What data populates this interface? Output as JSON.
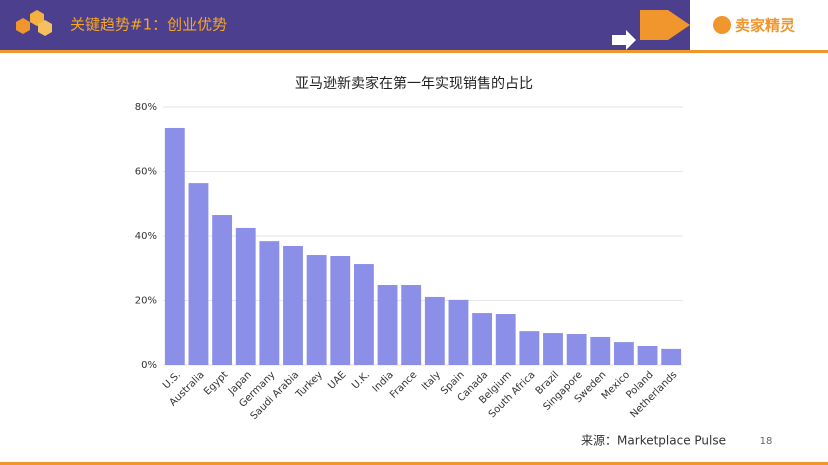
{
  "header": {
    "title": "关键趋势#1：创业优势",
    "brand": "卖家精灵"
  },
  "footer": {
    "source": "来源：Marketplace Pulse",
    "page": "18"
  },
  "chart_data": {
    "type": "bar",
    "title": "亚马逊新卖家在第一年实现销售的占比",
    "categories": [
      "U.S.",
      "Australia",
      "Egypt",
      "Japan",
      "Germany",
      "Saudi Arabia",
      "Turkey",
      "UAE",
      "U.K.",
      "India",
      "France",
      "Italy",
      "Spain",
      "Canada",
      "Belgium",
      "South Africa",
      "Brazil",
      "Singapore",
      "Sweden",
      "Mexico",
      "Poland",
      "Netherlands"
    ],
    "values": [
      73.5,
      56.4,
      46.5,
      42.5,
      38.4,
      36.9,
      34.1,
      33.8,
      31.3,
      24.8,
      24.8,
      21.1,
      20.2,
      16.1,
      15.8,
      10.5,
      9.9,
      9.6,
      8.7,
      7.1,
      5.9,
      5.0
    ],
    "color": "#8b8fe8",
    "ylim": [
      0,
      80
    ],
    "yticks": [
      {
        "value": 0,
        "label": "0%"
      },
      {
        "value": 20,
        "label": "20%"
      },
      {
        "value": 40,
        "label": "40%"
      },
      {
        "value": 60,
        "label": "60%"
      },
      {
        "value": 80,
        "label": "80%"
      }
    ],
    "grid": true
  }
}
